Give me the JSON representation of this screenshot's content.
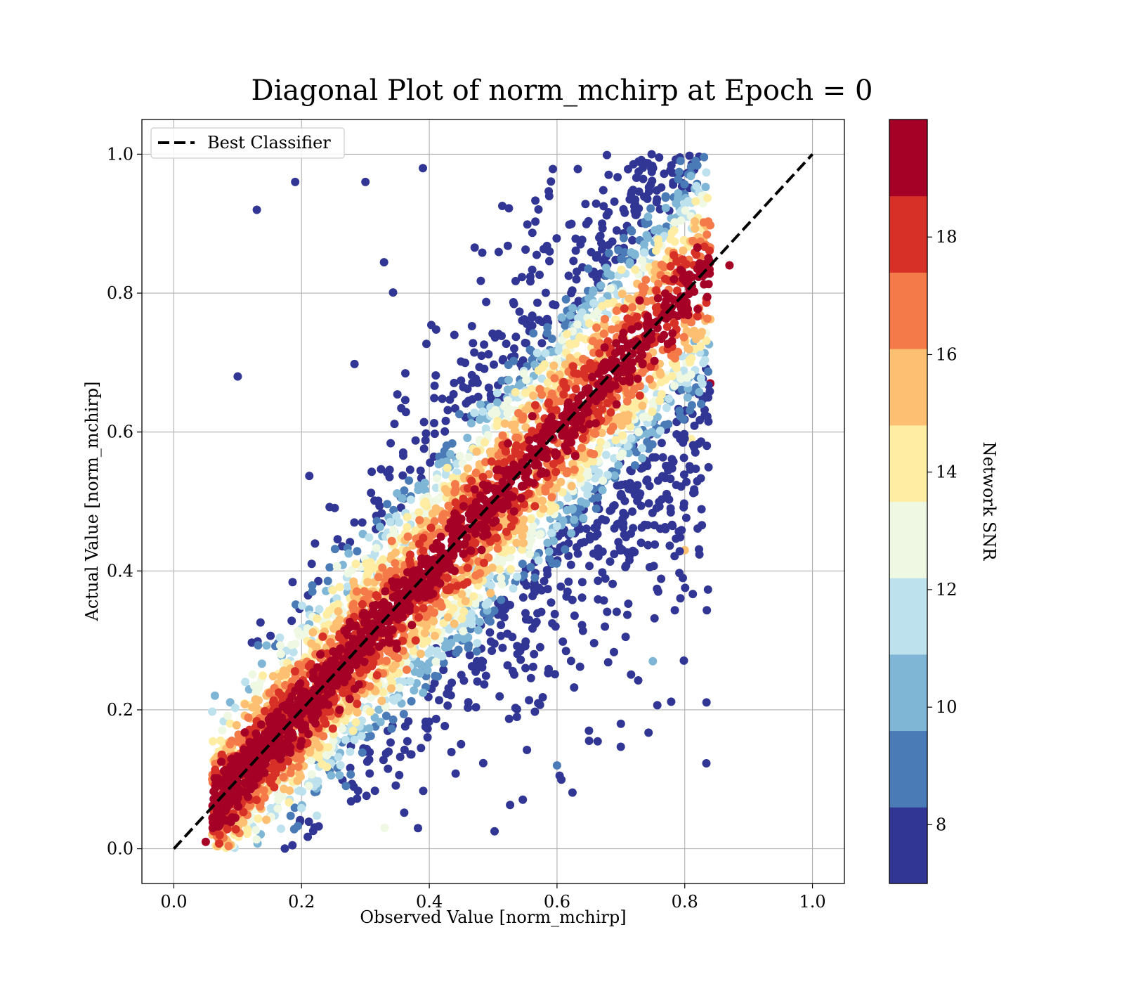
{
  "chart_data": {
    "type": "scatter",
    "title": "Diagonal Plot of norm_mchirp at Epoch = 0",
    "xlabel": "Observed Value [norm_mchirp]",
    "ylabel": "Actual Value [norm_mchirp]",
    "xlim": [
      -0.05,
      1.05
    ],
    "ylim": [
      -0.05,
      1.05
    ],
    "xticks": [
      "0.0",
      "0.2",
      "0.4",
      "0.6",
      "0.8",
      "1.0"
    ],
    "yticks": [
      "0.0",
      "0.2",
      "0.4",
      "0.6",
      "0.8",
      "1.0"
    ],
    "grid": true,
    "legend": {
      "position": "top-left",
      "entries": [
        {
          "label": "Best Classifier",
          "style": "dashed",
          "color": "#000000"
        }
      ]
    },
    "reference_line": {
      "name": "Best Classifier",
      "x": [
        0.0,
        1.0
      ],
      "y": [
        0.0,
        1.0
      ]
    },
    "colorbar": {
      "label": "Network SNR",
      "range": [
        7.0,
        20.0
      ],
      "ticks": [
        "8",
        "10",
        "12",
        "14",
        "16",
        "18"
      ],
      "colors": [
        "#313695",
        "#4a7bb7",
        "#7fb6d6",
        "#bde2ee",
        "#eff8e2",
        "#feeda2",
        "#fdbf71",
        "#f57a4a",
        "#d73027",
        "#a50026"
      ]
    },
    "point_cloud": {
      "description_of_bands": "points concentrated along the diagonal; high SNR near diagonal, low SNR far from it",
      "observed_range": [
        0.03,
        0.87
      ],
      "actual_range": [
        0.0,
        1.0
      ],
      "sample_points": [
        {
          "x": 0.13,
          "y": 0.92,
          "snr": 8
        },
        {
          "x": 0.19,
          "y": 0.96,
          "snr": 8
        },
        {
          "x": 0.3,
          "y": 0.96,
          "snr": 8
        },
        {
          "x": 0.39,
          "y": 0.98,
          "snr": 8
        },
        {
          "x": 0.1,
          "y": 0.68,
          "snr": 8
        },
        {
          "x": 0.65,
          "y": 0.17,
          "snr": 8
        },
        {
          "x": 0.7,
          "y": 0.18,
          "snr": 8
        },
        {
          "x": 0.75,
          "y": 0.27,
          "snr": 10
        },
        {
          "x": 0.6,
          "y": 0.12,
          "snr": 9
        },
        {
          "x": 0.87,
          "y": 0.84,
          "snr": 19
        },
        {
          "x": 0.84,
          "y": 0.67,
          "snr": 19
        },
        {
          "x": 0.8,
          "y": 0.43,
          "snr": 15
        },
        {
          "x": 0.81,
          "y": 0.59,
          "snr": 14
        },
        {
          "x": 0.33,
          "y": 0.03,
          "snr": 13
        },
        {
          "x": 0.05,
          "y": 0.01,
          "snr": 19
        }
      ]
    }
  }
}
